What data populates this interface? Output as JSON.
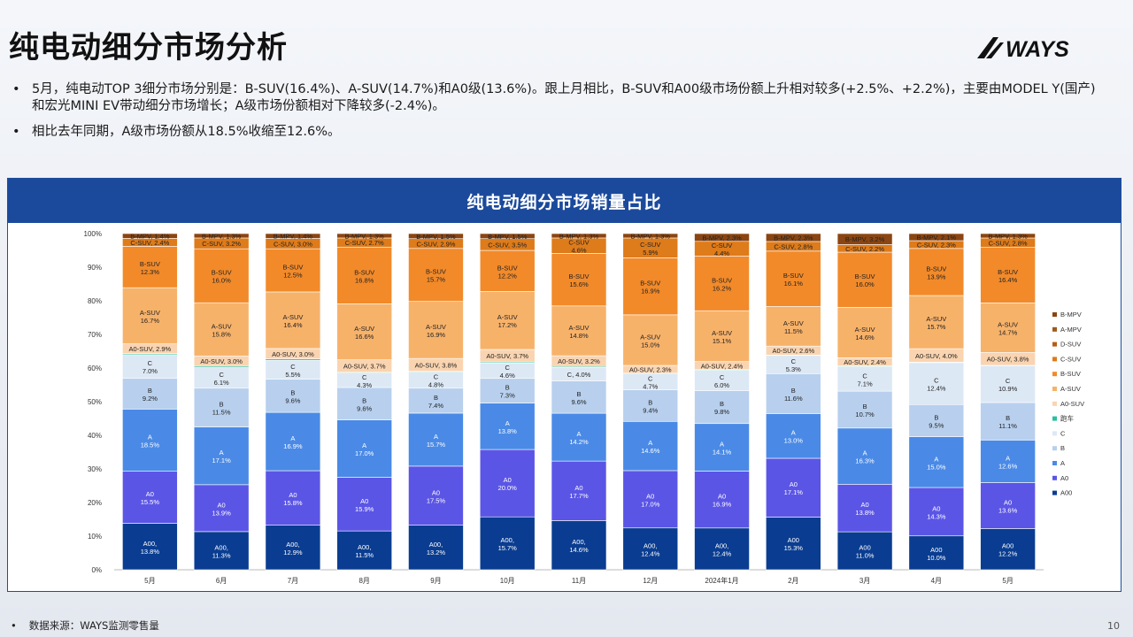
{
  "page": {
    "title": "纯电动细分市场分析",
    "logo_text": "WAYS",
    "bullet_marker": "•",
    "bullets": [
      "5月，纯电动TOP 3细分市场分别是：B-SUV(16.4%)、A-SUV(14.7%)和A0级(13.6%)。跟上月相比，B-SUV和A00级市场份额上升相对较多(+2.5%、+2.2%)，主要由MODEL Y(国产)和宏光MINI EV带动细分市场增长；A级市场份额相对下降较多(-2.4%)。",
      "相比去年同期，A级市场份额从18.5%收缩至12.6%。"
    ],
    "footer": "数据来源：WAYS监测零售量",
    "page_number": "10"
  },
  "chart_data": {
    "type": "bar",
    "stacked": true,
    "title": "纯电动细分市场销量占比",
    "categories": [
      "5月",
      "6月",
      "7月",
      "8月",
      "9月",
      "10月",
      "11月",
      "12月",
      "2024年1月",
      "2月",
      "3月",
      "4月",
      "5月"
    ],
    "ylim": [
      0,
      100
    ],
    "yticks": [
      "0%",
      "10%",
      "20%",
      "30%",
      "40%",
      "50%",
      "60%",
      "70%",
      "80%",
      "90%",
      "100%"
    ],
    "legend_position": "right",
    "series": [
      {
        "name": "A00",
        "color": "#0a3d91",
        "values": [
          13.8,
          11.3,
          12.9,
          11.5,
          13.2,
          15.7,
          14.6,
          12.4,
          12.4,
          15.3,
          11.0,
          10.0,
          12.2
        ],
        "labels": [
          "A00,\n13.8%",
          "A00,\n11.3%",
          "A00,\n12.9%",
          "A00,\n11.5%",
          "A00,\n13.2%",
          "A00,\n15.7%",
          "A00,\n14.6%",
          "A00,\n12.4%",
          "A00,\n12.4%",
          "A00\n15.3%",
          "A00\n11.0%",
          "A00\n10.0%",
          "A00\n12.2%"
        ]
      },
      {
        "name": "A0",
        "color": "#5b55e6",
        "values": [
          15.5,
          13.9,
          15.8,
          15.9,
          17.5,
          20.0,
          17.7,
          17.0,
          16.9,
          17.1,
          13.8,
          14.3,
          13.6
        ]
      },
      {
        "name": "A",
        "color": "#4a8ae6",
        "values": [
          18.5,
          17.1,
          16.9,
          17.0,
          15.7,
          13.8,
          14.2,
          14.6,
          14.1,
          13.0,
          16.3,
          15.0,
          12.6
        ]
      },
      {
        "name": "B",
        "color": "#b8d0ee",
        "values": [
          9.2,
          11.5,
          9.6,
          9.6,
          7.4,
          7.3,
          9.6,
          9.4,
          9.8,
          11.6,
          10.7,
          9.5,
          11.1
        ]
      },
      {
        "name": "C",
        "color": "#dde8f5",
        "values": [
          7.0,
          6.1,
          5.5,
          4.3,
          4.8,
          4.6,
          4.0,
          4.7,
          6.0,
          5.3,
          7.1,
          12.4,
          10.9
        ]
      },
      {
        "name": "跑车",
        "color": "#2bbf9f",
        "values": [
          0.3,
          0.4,
          0.4,
          0.2,
          0.2,
          0.3,
          0.3,
          0.2,
          0.2,
          0.1,
          0.2,
          0.1,
          0.1
        ]
      },
      {
        "name": "A0-SUV",
        "color": "#fad4b0",
        "values": [
          2.9,
          3.0,
          3.0,
          3.7,
          3.8,
          3.7,
          3.2,
          2.3,
          2.4,
          2.6,
          2.4,
          4.0,
          3.8
        ]
      },
      {
        "name": "A-SUV",
        "color": "#f7b26a",
        "values": [
          16.7,
          15.8,
          16.4,
          16.6,
          16.9,
          17.2,
          14.8,
          15.0,
          15.1,
          11.5,
          14.6,
          15.7,
          14.7
        ]
      },
      {
        "name": "B-SUV",
        "color": "#f28a2a",
        "values": [
          12.3,
          16.0,
          12.5,
          16.8,
          15.7,
          12.2,
          15.6,
          16.9,
          16.2,
          16.1,
          16.0,
          13.9,
          16.4
        ]
      },
      {
        "name": "C-SUV",
        "color": "#de7b1a",
        "values": [
          2.4,
          3.2,
          3.0,
          2.7,
          2.9,
          3.5,
          4.6,
          5.9,
          4.4,
          2.8,
          2.2,
          2.3,
          2.8
        ]
      },
      {
        "name": "D-SUV",
        "color": "#b85c14",
        "values": [
          0,
          0,
          0,
          0,
          0,
          0,
          0,
          0,
          0,
          0,
          0,
          0,
          0
        ]
      },
      {
        "name": "A-MPV",
        "color": "#9c5a1c",
        "values": [
          0,
          0,
          0,
          0,
          0,
          0,
          0,
          0,
          0,
          0,
          0,
          0,
          0
        ]
      },
      {
        "name": "B-MPV",
        "color": "#8a4512",
        "values": [
          1.4,
          1.3,
          1.4,
          1.3,
          1.5,
          1.5,
          1.3,
          1.3,
          2.3,
          2.3,
          3.2,
          2.1,
          1.3
        ]
      }
    ],
    "legend_order": [
      "B-MPV",
      "A-MPV",
      "D-SUV",
      "C-SUV",
      "B-SUV",
      "A-SUV",
      "A0-SUV",
      "跑车",
      "C",
      "B",
      "A",
      "A0",
      "A00"
    ],
    "label_series": [
      "A00",
      "A0",
      "A",
      "B",
      "C",
      "A0-SUV",
      "A-SUV",
      "B-SUV",
      "C-SUV",
      "B-MPV"
    ]
  }
}
